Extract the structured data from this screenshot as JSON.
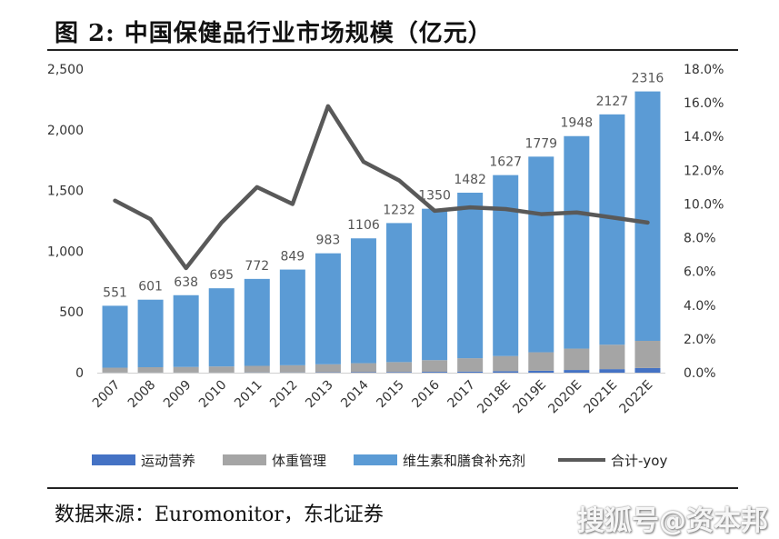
{
  "header": {
    "title": "图  2:  中国保健品行业市场规模（亿元）"
  },
  "footer": {
    "source": "数据来源：Euromonitor，东北证券",
    "watermark": "搜狐号@资本邦"
  },
  "colors": {
    "sports": "#4472C4",
    "weight": "#A5A5A5",
    "vitamin": "#5B9BD5",
    "yoy": "#595959"
  },
  "chart_data": {
    "type": "bar",
    "stacked": true,
    "categories": [
      "2007",
      "2008",
      "2009",
      "2010",
      "2011",
      "2012",
      "2013",
      "2014",
      "2015",
      "2016",
      "2017",
      "2018E",
      "2019E",
      "2020E",
      "2021E",
      "2022E"
    ],
    "totals": [
      551,
      601,
      638,
      695,
      772,
      849,
      983,
      1106,
      1232,
      1350,
      1482,
      1627,
      1779,
      1948,
      2127,
      2316
    ],
    "series": [
      {
        "name": "运动营养",
        "type": "bar",
        "values": [
          1,
          1,
          1,
          1,
          2,
          2,
          3,
          4,
          5,
          7,
          9,
          12,
          16,
          22,
          29,
          38
        ]
      },
      {
        "name": "体重管理",
        "type": "bar",
        "values": [
          40,
          44,
          46,
          50,
          54,
          59,
          66,
          74,
          82,
          96,
          110,
          125,
          152,
          176,
          201,
          224
        ]
      },
      {
        "name": "维生素和膳食补充剂",
        "type": "bar",
        "values": [
          510,
          556,
          591,
          644,
          716,
          788,
          914,
          1028,
          1145,
          1247,
          1363,
          1490,
          1611,
          1750,
          1897,
          2054
        ]
      },
      {
        "name": "合计-yoy",
        "type": "line",
        "axis": "right",
        "values": [
          0.102,
          0.091,
          0.062,
          0.089,
          0.11,
          0.1,
          0.158,
          0.125,
          0.114,
          0.096,
          0.098,
          0.097,
          0.094,
          0.095,
          0.092,
          0.089
        ]
      }
    ],
    "y_left": {
      "min": 0,
      "max": 2500,
      "ticks": [
        "0",
        "500",
        "1,000",
        "1,500",
        "2,000",
        "2,500"
      ],
      "tick_values": [
        0,
        500,
        1000,
        1500,
        2000,
        2500
      ]
    },
    "y_right": {
      "min": 0,
      "max": 0.18,
      "ticks": [
        "0.0%",
        "2.0%",
        "4.0%",
        "6.0%",
        "8.0%",
        "10.0%",
        "12.0%",
        "14.0%",
        "16.0%",
        "18.0%"
      ],
      "tick_values": [
        0,
        0.02,
        0.04,
        0.06,
        0.08,
        0.1,
        0.12,
        0.14,
        0.16,
        0.18
      ]
    },
    "legend": {
      "position": "bottom",
      "labels": [
        "运动营养",
        "体重管理",
        "维生素和膳食补充剂",
        "合计-yoy"
      ]
    },
    "grid": false
  }
}
